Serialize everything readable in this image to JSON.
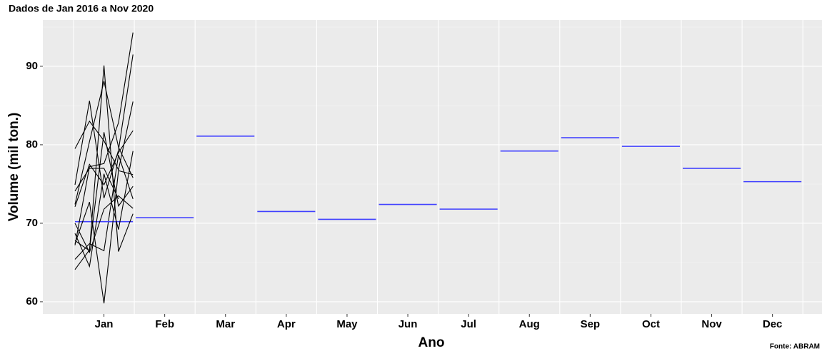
{
  "chart_data": {
    "type": "subseries",
    "title": "Dados de Jan 2016 a Nov 2020",
    "x_label": "Ano",
    "y_label": "Volume (mil ton.)",
    "caption": "Fonte: ABRAM",
    "categories": [
      "Jan",
      "Feb",
      "Mar",
      "Apr",
      "May",
      "Jun",
      "Jul",
      "Aug",
      "Sep",
      "Oct",
      "Nov",
      "Dec"
    ],
    "values": [
      [
        65.4,
        67.4,
        66.5,
        78.7,
        73.1
      ],
      [
        70.0,
        66.3,
        71.8,
        73.5,
        71.9
      ],
      [
        79.5,
        83.0,
        80.5,
        76.8,
        85.5
      ],
      [
        68.7,
        64.5,
        76.3,
        69.2,
        79.2
      ],
      [
        67.4,
        72.7,
        59.8,
        76.7,
        76.2
      ],
      [
        67.8,
        66.5,
        90.1,
        66.4,
        71.2
      ],
      [
        64.1,
        66.6,
        81.6,
        72.2,
        74.7
      ],
      [
        72.4,
        80.4,
        88.1,
        79.7,
        75.8
      ],
      [
        74.9,
        85.6,
        73.2,
        79.3,
        91.5
      ],
      [
        67.2,
        77.2,
        77.6,
        82.8,
        94.3
      ],
      [
        72.1,
        77.5,
        74.9,
        79.0,
        81.8
      ],
      [
        74.1,
        77.0,
        77.0,
        73.1
      ]
    ],
    "means": [
      70.2,
      70.7,
      81.1,
      71.5,
      70.5,
      72.4,
      71.8,
      79.2,
      80.9,
      79.8,
      77.0,
      75.3
    ],
    "line_color": "#000000",
    "mean_color": "#4040ff",
    "ylim": [
      58.45,
      95.9
    ],
    "yticks": [
      60,
      70,
      80,
      90
    ],
    "minor_yticks": [
      65,
      75,
      85,
      95
    ],
    "grid": true
  }
}
